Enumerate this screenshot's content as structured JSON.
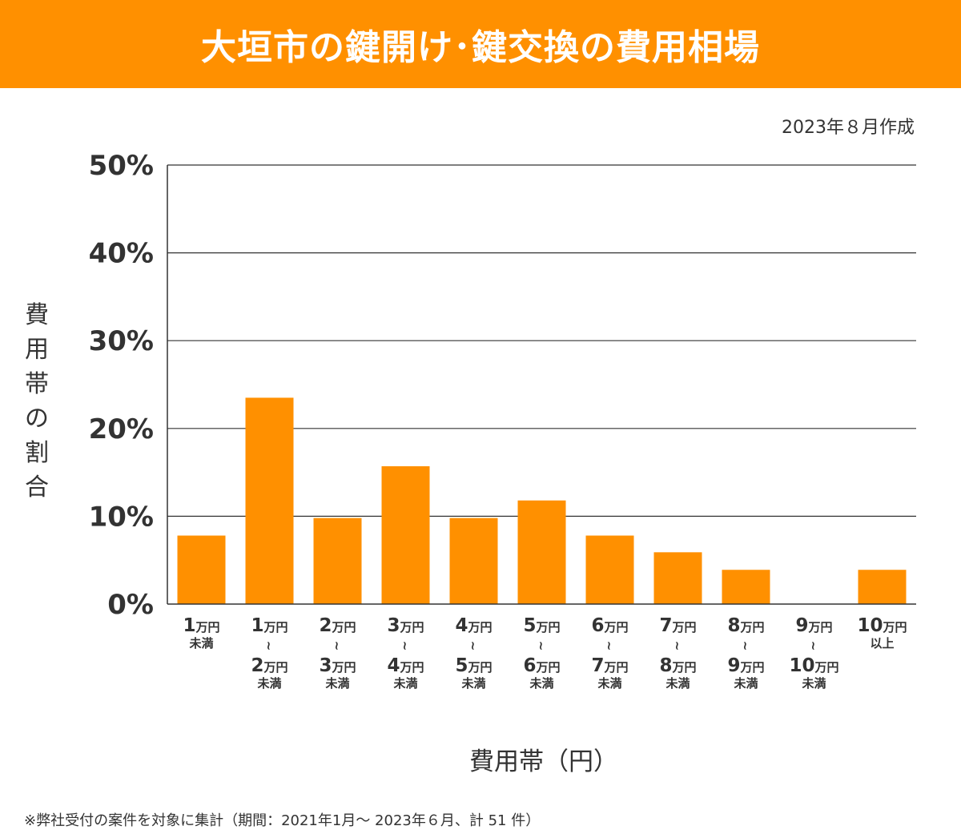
{
  "header": {
    "title": "大垣市の鍵開け･鍵交換の費用相場"
  },
  "created_note": "2023年８月作成",
  "colors": {
    "accent": "#ff9000",
    "bar": "#ff9000",
    "text": "#333333",
    "grid": "#333333"
  },
  "footnote": "※弊社受付の案件を対象に集計（期間：2021年1月～ 2023年６月、計 51 件）",
  "chart_data": {
    "type": "bar",
    "title": "大垣市の鍵開け･鍵交換の費用相場",
    "xlabel": "費用帯（円）",
    "ylabel": "費用帯の割合",
    "ylim": [
      0,
      50
    ],
    "yticks": [
      "0%",
      "10%",
      "20%",
      "30%",
      "40%",
      "50%"
    ],
    "grid": true,
    "categories": [
      "1万円未満",
      "1万円～2万円未満",
      "2万円～3万円未満",
      "3万円～4万円未満",
      "4万円～5万円未満",
      "5万円～6万円未満",
      "6万円～7万円未満",
      "7万円～8万円未満",
      "8万円～9万円未満",
      "9万円～10万円未満",
      "10万円以上"
    ],
    "category_labels": [
      [
        {
          "num": "1",
          "unit": "万円"
        },
        {
          "sub": "未満"
        }
      ],
      [
        {
          "num": "1",
          "unit": "万円"
        },
        {
          "tilde": "~"
        },
        {
          "num": "2",
          "unit": "万円"
        },
        {
          "sub": "未満"
        }
      ],
      [
        {
          "num": "2",
          "unit": "万円"
        },
        {
          "tilde": "~"
        },
        {
          "num": "3",
          "unit": "万円"
        },
        {
          "sub": "未満"
        }
      ],
      [
        {
          "num": "3",
          "unit": "万円"
        },
        {
          "tilde": "~"
        },
        {
          "num": "4",
          "unit": "万円"
        },
        {
          "sub": "未満"
        }
      ],
      [
        {
          "num": "4",
          "unit": "万円"
        },
        {
          "tilde": "~"
        },
        {
          "num": "5",
          "unit": "万円"
        },
        {
          "sub": "未満"
        }
      ],
      [
        {
          "num": "5",
          "unit": "万円"
        },
        {
          "tilde": "~"
        },
        {
          "num": "6",
          "unit": "万円"
        },
        {
          "sub": "未満"
        }
      ],
      [
        {
          "num": "6",
          "unit": "万円"
        },
        {
          "tilde": "~"
        },
        {
          "num": "7",
          "unit": "万円"
        },
        {
          "sub": "未満"
        }
      ],
      [
        {
          "num": "7",
          "unit": "万円"
        },
        {
          "tilde": "~"
        },
        {
          "num": "8",
          "unit": "万円"
        },
        {
          "sub": "未満"
        }
      ],
      [
        {
          "num": "8",
          "unit": "万円"
        },
        {
          "tilde": "~"
        },
        {
          "num": "9",
          "unit": "万円"
        },
        {
          "sub": "未満"
        }
      ],
      [
        {
          "num": "9",
          "unit": "万円"
        },
        {
          "tilde": "~"
        },
        {
          "num": "10",
          "unit": "万円"
        },
        {
          "sub": "未満"
        }
      ],
      [
        {
          "num": "10",
          "unit": "万円"
        },
        {
          "sub": "以上"
        }
      ]
    ],
    "values": [
      7.8,
      23.5,
      9.8,
      15.7,
      9.8,
      11.8,
      7.8,
      5.9,
      3.9,
      0,
      3.9
    ]
  }
}
